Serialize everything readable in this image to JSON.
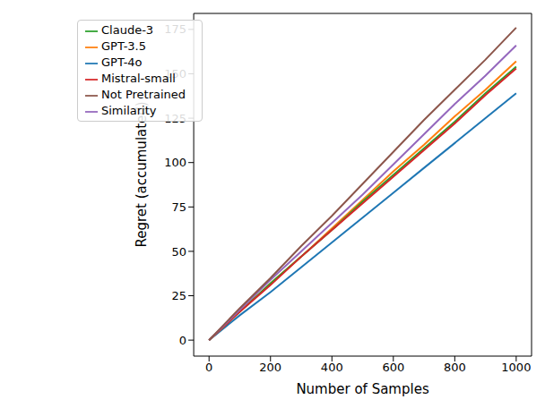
{
  "chart_data": {
    "type": "line",
    "x_label": "Number of Samples",
    "y_label": "Regret (accumulated)",
    "x": [
      0,
      100,
      200,
      300,
      400,
      500,
      600,
      700,
      800,
      900,
      1000
    ],
    "series": [
      {
        "name": "GPT-4o",
        "color": "#1f77b4",
        "values": [
          0,
          14,
          27,
          41,
          55,
          69,
          83,
          97,
          111,
          125,
          139
        ]
      },
      {
        "name": "GPT-3.5",
        "color": "#ff7f0e",
        "values": [
          0,
          16,
          32,
          47,
          63,
          79,
          95,
          110,
          126,
          141,
          157
        ]
      },
      {
        "name": "Claude-3",
        "color": "#2ca02c",
        "values": [
          0,
          16,
          32,
          47,
          62,
          78,
          93,
          108,
          123,
          139,
          154
        ]
      },
      {
        "name": "Mistral-small",
        "color": "#d62728",
        "values": [
          0,
          16,
          31,
          47,
          62,
          77,
          92,
          107,
          122,
          138,
          153
        ]
      },
      {
        "name": "Similarity",
        "color": "#9467bd",
        "values": [
          0,
          17,
          34,
          50,
          66,
          82,
          99,
          116,
          133,
          149,
          166
        ]
      },
      {
        "name": "Not Pretrained",
        "color": "#8c564b",
        "values": [
          0,
          18,
          35,
          53,
          70,
          88,
          106,
          124,
          141,
          158,
          176
        ]
      }
    ],
    "xlim": [
      -50,
      1050
    ],
    "xticks": [
      0,
      200,
      400,
      600,
      800,
      1000
    ],
    "ylim": [
      -9,
      184
    ],
    "yticks": [
      0,
      25,
      50,
      75,
      100,
      125,
      150,
      175
    ],
    "legend": "upper left",
    "grid": false
  }
}
